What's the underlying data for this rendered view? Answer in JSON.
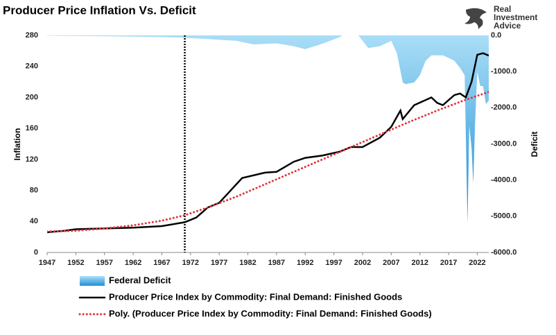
{
  "brand": "Real Investment Advice",
  "chart_data": {
    "type": "line",
    "title": "Producer Price Inflation Vs. Deficit",
    "y_label": "Inflation",
    "y2_label": "Deficit",
    "xlim": [
      1947,
      2024
    ],
    "xticks": [
      1947,
      1952,
      1957,
      1962,
      1967,
      1972,
      1977,
      1982,
      1987,
      1992,
      1997,
      2002,
      2007,
      2012,
      2017,
      2022
    ],
    "ylim": [
      0,
      280
    ],
    "yticks": [
      0,
      40,
      80,
      120,
      160,
      200,
      240,
      280
    ],
    "y2lim": [
      -6000,
      0
    ],
    "y2ticks": [
      {
        "value": 0,
        "label": "0.0"
      },
      {
        "value": -1000,
        "label": "-1000.0"
      },
      {
        "value": -2000,
        "label": "-2000.0"
      },
      {
        "value": -3000,
        "label": "-3000.0"
      },
      {
        "value": -4000,
        "label": "-4000.0"
      },
      {
        "value": -5000,
        "label": "-5000.0"
      },
      {
        "value": -6000,
        "label": "-6000.0"
      }
    ],
    "vline_x": 1971,
    "series": [
      {
        "name": "Federal Deficit",
        "kind": "area",
        "axis": "y2",
        "color": "#3aa0dc",
        "x": [
          1947,
          1955,
          1960,
          1965,
          1970,
          1975,
          1980,
          1983,
          1987,
          1990,
          1992,
          1995,
          1998,
          2000,
          2001,
          2003,
          2005,
          2007,
          2008,
          2009,
          2009.5,
          2011,
          2012,
          2013,
          2014,
          2016,
          2018,
          2019,
          2019.8,
          2020.3,
          2020.6,
          2021,
          2021.3,
          2021.6,
          2022,
          2022.5,
          2023,
          2023.5,
          2024
        ],
        "values": [
          -10,
          -20,
          -30,
          -40,
          -60,
          -100,
          -150,
          -250,
          -220,
          -300,
          -380,
          -230,
          -50,
          150,
          50,
          -350,
          -300,
          -150,
          -500,
          -1300,
          -1350,
          -1300,
          -1100,
          -700,
          -550,
          -550,
          -700,
          -900,
          -1100,
          -5200,
          -2500,
          -3100,
          -4100,
          -2500,
          -1000,
          -1400,
          -1400,
          -1900,
          -1800
        ]
      },
      {
        "name": "Producer Price Index by Commodity: Final Demand: Finished Goods",
        "kind": "line",
        "color": "#000000",
        "dash": "solid",
        "x": [
          1947,
          1950,
          1952,
          1957,
          1962,
          1967,
          1971,
          1973,
          1975,
          1977,
          1979,
          1981,
          1985,
          1987,
          1990,
          1992,
          1995,
          1998,
          2000,
          2002,
          2005,
          2007,
          2008.6,
          2009,
          2011,
          2014,
          2015,
          2016,
          2018,
          2019,
          2020,
          2021,
          2022,
          2023,
          2024
        ],
        "values": [
          26,
          28,
          30,
          31,
          32,
          34,
          39,
          45,
          58,
          64,
          80,
          96,
          103,
          104,
          117,
          122,
          125,
          130,
          136,
          136,
          148,
          162,
          183,
          172,
          190,
          200,
          193,
          190,
          203,
          205,
          200,
          220,
          255,
          257,
          254
        ]
      },
      {
        "name": "Poly. (Producer Price Index by Commodity: Final Demand: Finished Goods)",
        "kind": "line",
        "color": "#e0343c",
        "dash": "dotted",
        "x": [
          1947,
          1952,
          1957,
          1962,
          1967,
          1971,
          1975,
          1980,
          1985,
          1990,
          1995,
          2000,
          2005,
          2010,
          2015,
          2020,
          2024
        ],
        "values": [
          27,
          28,
          31,
          35,
          41,
          48,
          58,
          72,
          88,
          104,
          120,
          136,
          152,
          168,
          183,
          197,
          207
        ]
      }
    ]
  }
}
